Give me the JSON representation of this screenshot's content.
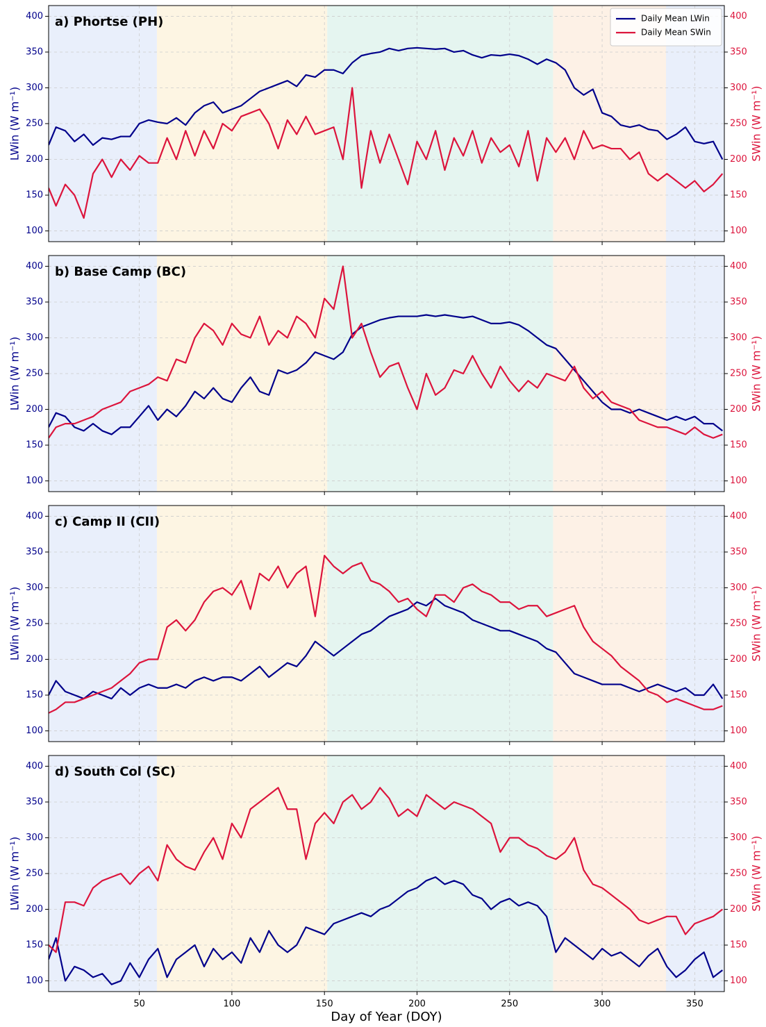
{
  "chart_data": [
    {
      "type": "line",
      "title": "a) Phortse (PH)",
      "ylabel": "LWin (W m⁻¹)",
      "y2label": "SWin (W m⁻¹)",
      "legend": "upper right",
      "xlim": [
        1,
        366
      ],
      "xticks": [
        50,
        100,
        150,
        200,
        250,
        300,
        350
      ],
      "show_xticklabels": false,
      "ylim": [
        85,
        415
      ],
      "yticks": [
        100,
        150,
        200,
        250,
        300,
        350,
        400
      ],
      "y2lim": [
        85,
        415
      ],
      "y2ticks": [
        100,
        150,
        200,
        250,
        300,
        350,
        400
      ],
      "grid": true,
      "shaded_periods": [
        {
          "start": 1,
          "end": 59.5,
          "color": "#e9effb"
        },
        {
          "start": 59.5,
          "end": 151.5,
          "color": "#fdf5e3"
        },
        {
          "start": 151.5,
          "end": 273.5,
          "color": "#e5f5f0"
        },
        {
          "start": 273.5,
          "end": 334.5,
          "color": "#fdf1e6"
        },
        {
          "start": 334.5,
          "end": 366,
          "color": "#e9effb"
        }
      ],
      "x": [
        1,
        5,
        10,
        15,
        20,
        25,
        30,
        35,
        40,
        45,
        50,
        55,
        60,
        65,
        70,
        75,
        80,
        85,
        90,
        95,
        100,
        105,
        110,
        115,
        120,
        125,
        130,
        135,
        140,
        145,
        150,
        155,
        160,
        165,
        170,
        175,
        180,
        185,
        190,
        195,
        200,
        205,
        210,
        215,
        220,
        225,
        230,
        235,
        240,
        245,
        250,
        255,
        260,
        265,
        270,
        275,
        280,
        285,
        290,
        295,
        300,
        305,
        310,
        315,
        320,
        325,
        330,
        335,
        340,
        345,
        350,
        355,
        360,
        365
      ],
      "series": [
        {
          "name": "Daily Mean LWin",
          "color": "#00008b",
          "values": [
            220,
            245,
            240,
            225,
            235,
            220,
            230,
            228,
            232,
            232,
            250,
            255,
            252,
            250,
            258,
            248,
            265,
            275,
            280,
            265,
            270,
            275,
            285,
            295,
            300,
            305,
            310,
            302,
            318,
            315,
            325,
            325,
            320,
            335,
            345,
            348,
            350,
            355,
            352,
            355,
            356,
            355,
            354,
            355,
            350,
            352,
            346,
            342,
            346,
            345,
            347,
            345,
            340,
            333,
            340,
            335,
            325,
            300,
            290,
            298,
            265,
            260,
            248,
            245,
            248,
            242,
            240,
            228,
            235,
            245,
            225,
            222,
            225,
            200
          ]
        },
        {
          "name": "Daily Mean SWin",
          "color": "#dc143c",
          "axis": "y2",
          "values": [
            160,
            135,
            165,
            150,
            118,
            180,
            200,
            175,
            200,
            185,
            205,
            195,
            195,
            230,
            200,
            240,
            205,
            240,
            215,
            250,
            240,
            260,
            265,
            270,
            250,
            215,
            255,
            235,
            260,
            235,
            240,
            245,
            200,
            300,
            160,
            240,
            195,
            235,
            200,
            165,
            225,
            200,
            240,
            185,
            230,
            205,
            240,
            195,
            230,
            210,
            220,
            190,
            240,
            170,
            230,
            210,
            230,
            200,
            240,
            215,
            220,
            215,
            215,
            200,
            210,
            180,
            170,
            180,
            170,
            160,
            170,
            155,
            165,
            180
          ]
        }
      ]
    },
    {
      "type": "line",
      "title": "b) Base Camp (BC)",
      "ylabel": "LWin (W m⁻¹)",
      "y2label": "SWin (W m⁻¹)",
      "xlim": [
        1,
        366
      ],
      "xticks": [
        50,
        100,
        150,
        200,
        250,
        300,
        350
      ],
      "show_xticklabels": false,
      "ylim": [
        85,
        415
      ],
      "yticks": [
        100,
        150,
        200,
        250,
        300,
        350,
        400
      ],
      "y2lim": [
        85,
        415
      ],
      "y2ticks": [
        100,
        150,
        200,
        250,
        300,
        350,
        400
      ],
      "grid": true,
      "shaded_periods": [
        {
          "start": 1,
          "end": 59.5,
          "color": "#e9effb"
        },
        {
          "start": 59.5,
          "end": 151.5,
          "color": "#fdf5e3"
        },
        {
          "start": 151.5,
          "end": 273.5,
          "color": "#e5f5f0"
        },
        {
          "start": 273.5,
          "end": 334.5,
          "color": "#fdf1e6"
        },
        {
          "start": 334.5,
          "end": 366,
          "color": "#e9effb"
        }
      ],
      "x": [
        1,
        5,
        10,
        15,
        20,
        25,
        30,
        35,
        40,
        45,
        50,
        55,
        60,
        65,
        70,
        75,
        80,
        85,
        90,
        95,
        100,
        105,
        110,
        115,
        120,
        125,
        130,
        135,
        140,
        145,
        150,
        155,
        160,
        165,
        170,
        175,
        180,
        185,
        190,
        195,
        200,
        205,
        210,
        215,
        220,
        225,
        230,
        235,
        240,
        245,
        250,
        255,
        260,
        265,
        270,
        275,
        280,
        285,
        290,
        295,
        300,
        305,
        310,
        315,
        320,
        325,
        330,
        335,
        340,
        345,
        350,
        355,
        360,
        365
      ],
      "series": [
        {
          "color": "#00008b",
          "values": [
            175,
            195,
            190,
            175,
            170,
            180,
            170,
            165,
            175,
            175,
            190,
            205,
            185,
            200,
            190,
            205,
            225,
            215,
            230,
            215,
            210,
            230,
            245,
            225,
            220,
            255,
            250,
            255,
            265,
            280,
            275,
            270,
            280,
            305,
            315,
            320,
            325,
            328,
            330,
            330,
            330,
            332,
            330,
            332,
            330,
            328,
            330,
            325,
            320,
            320,
            322,
            318,
            310,
            300,
            290,
            285,
            270,
            255,
            240,
            225,
            210,
            200,
            200,
            195,
            200,
            195,
            190,
            185,
            190,
            185,
            190,
            180,
            180,
            170
          ]
        },
        {
          "color": "#dc143c",
          "axis": "y2",
          "values": [
            160,
            175,
            180,
            180,
            185,
            190,
            200,
            205,
            210,
            225,
            230,
            235,
            245,
            240,
            270,
            265,
            300,
            320,
            310,
            290,
            320,
            305,
            300,
            330,
            290,
            310,
            300,
            330,
            320,
            300,
            355,
            340,
            400,
            300,
            320,
            280,
            245,
            260,
            265,
            230,
            200,
            250,
            220,
            230,
            255,
            250,
            275,
            250,
            230,
            260,
            240,
            225,
            240,
            230,
            250,
            245,
            240,
            260,
            230,
            215,
            225,
            210,
            205,
            200,
            185,
            180,
            175,
            175,
            170,
            165,
            175,
            165,
            160,
            165
          ]
        }
      ]
    },
    {
      "type": "line",
      "title": "c) Camp II (CII)",
      "ylabel": "LWin (W m⁻¹)",
      "y2label": "SWin (W m⁻¹)",
      "xlim": [
        1,
        366
      ],
      "xticks": [
        50,
        100,
        150,
        200,
        250,
        300,
        350
      ],
      "show_xticklabels": false,
      "ylim": [
        85,
        415
      ],
      "yticks": [
        100,
        150,
        200,
        250,
        300,
        350,
        400
      ],
      "y2lim": [
        85,
        415
      ],
      "y2ticks": [
        100,
        150,
        200,
        250,
        300,
        350,
        400
      ],
      "grid": true,
      "shaded_periods": [
        {
          "start": 1,
          "end": 59.5,
          "color": "#e9effb"
        },
        {
          "start": 59.5,
          "end": 151.5,
          "color": "#fdf5e3"
        },
        {
          "start": 151.5,
          "end": 273.5,
          "color": "#e5f5f0"
        },
        {
          "start": 273.5,
          "end": 334.5,
          "color": "#fdf1e6"
        },
        {
          "start": 334.5,
          "end": 366,
          "color": "#e9effb"
        }
      ],
      "x": [
        1,
        5,
        10,
        15,
        20,
        25,
        30,
        35,
        40,
        45,
        50,
        55,
        60,
        65,
        70,
        75,
        80,
        85,
        90,
        95,
        100,
        105,
        110,
        115,
        120,
        125,
        130,
        135,
        140,
        145,
        150,
        155,
        160,
        165,
        170,
        175,
        180,
        185,
        190,
        195,
        200,
        205,
        210,
        215,
        220,
        225,
        230,
        235,
        240,
        245,
        250,
        255,
        260,
        265,
        270,
        275,
        280,
        285,
        290,
        295,
        300,
        305,
        310,
        315,
        320,
        325,
        330,
        335,
        340,
        345,
        350,
        355,
        360,
        365
      ],
      "series": [
        {
          "color": "#00008b",
          "values": [
            150,
            170,
            155,
            150,
            145,
            155,
            150,
            145,
            160,
            150,
            160,
            165,
            160,
            160,
            165,
            160,
            170,
            175,
            170,
            175,
            175,
            170,
            180,
            190,
            175,
            185,
            195,
            190,
            205,
            225,
            215,
            205,
            215,
            225,
            235,
            240,
            250,
            260,
            265,
            270,
            280,
            275,
            285,
            275,
            270,
            265,
            255,
            250,
            245,
            240,
            240,
            235,
            230,
            225,
            215,
            210,
            195,
            180,
            175,
            170,
            165,
            165,
            165,
            160,
            155,
            160,
            165,
            160,
            155,
            160,
            150,
            150,
            165,
            145
          ]
        },
        {
          "color": "#dc143c",
          "axis": "y2",
          "values": [
            125,
            130,
            140,
            140,
            145,
            150,
            155,
            160,
            170,
            180,
            195,
            200,
            200,
            245,
            255,
            240,
            255,
            280,
            295,
            300,
            290,
            310,
            270,
            320,
            310,
            330,
            300,
            320,
            330,
            260,
            345,
            330,
            320,
            330,
            335,
            310,
            305,
            295,
            280,
            285,
            270,
            260,
            290,
            290,
            280,
            300,
            305,
            295,
            290,
            280,
            280,
            270,
            275,
            275,
            260,
            265,
            270,
            275,
            245,
            225,
            215,
            205,
            190,
            180,
            170,
            155,
            150,
            140,
            145,
            140,
            135,
            130,
            130,
            135
          ]
        }
      ]
    },
    {
      "type": "line",
      "title": "d) South Col (SC)",
      "ylabel": "LWin (W m⁻¹)",
      "y2label": "SWin (W m⁻¹)",
      "xlabel": "Day of Year (DOY)",
      "xlim": [
        1,
        366
      ],
      "xticks": [
        50,
        100,
        150,
        200,
        250,
        300,
        350
      ],
      "show_xticklabels": true,
      "ylim": [
        85,
        415
      ],
      "yticks": [
        100,
        150,
        200,
        250,
        300,
        350,
        400
      ],
      "y2lim": [
        85,
        415
      ],
      "y2ticks": [
        100,
        150,
        200,
        250,
        300,
        350,
        400
      ],
      "grid": true,
      "shaded_periods": [
        {
          "start": 1,
          "end": 59.5,
          "color": "#e9effb"
        },
        {
          "start": 59.5,
          "end": 151.5,
          "color": "#fdf5e3"
        },
        {
          "start": 151.5,
          "end": 273.5,
          "color": "#e5f5f0"
        },
        {
          "start": 273.5,
          "end": 334.5,
          "color": "#fdf1e6"
        },
        {
          "start": 334.5,
          "end": 366,
          "color": "#e9effb"
        }
      ],
      "x": [
        1,
        5,
        10,
        15,
        20,
        25,
        30,
        35,
        40,
        45,
        50,
        55,
        60,
        65,
        70,
        75,
        80,
        85,
        90,
        95,
        100,
        105,
        110,
        115,
        120,
        125,
        130,
        135,
        140,
        145,
        150,
        155,
        160,
        165,
        170,
        175,
        180,
        185,
        190,
        195,
        200,
        205,
        210,
        215,
        220,
        225,
        230,
        235,
        240,
        245,
        250,
        255,
        260,
        265,
        270,
        275,
        280,
        285,
        290,
        295,
        300,
        305,
        310,
        315,
        320,
        325,
        330,
        335,
        340,
        345,
        350,
        355,
        360,
        365
      ],
      "series": [
        {
          "color": "#00008b",
          "values": [
            130,
            160,
            100,
            120,
            115,
            105,
            110,
            95,
            100,
            125,
            105,
            130,
            145,
            105,
            130,
            140,
            150,
            120,
            145,
            130,
            140,
            125,
            160,
            140,
            170,
            150,
            140,
            150,
            175,
            170,
            165,
            180,
            185,
            190,
            195,
            190,
            200,
            205,
            215,
            225,
            230,
            240,
            245,
            235,
            240,
            235,
            220,
            215,
            200,
            210,
            215,
            205,
            210,
            205,
            190,
            140,
            160,
            150,
            140,
            130,
            145,
            135,
            140,
            130,
            120,
            135,
            145,
            120,
            105,
            115,
            130,
            140,
            105,
            115
          ]
        },
        {
          "color": "#dc143c",
          "axis": "y2",
          "values": [
            150,
            140,
            210,
            210,
            205,
            230,
            240,
            245,
            250,
            235,
            250,
            260,
            240,
            290,
            270,
            260,
            255,
            280,
            300,
            270,
            320,
            300,
            340,
            350,
            360,
            370,
            340,
            340,
            270,
            320,
            335,
            320,
            350,
            360,
            340,
            350,
            370,
            355,
            330,
            340,
            330,
            360,
            350,
            340,
            350,
            345,
            340,
            330,
            320,
            280,
            300,
            300,
            290,
            285,
            275,
            270,
            280,
            300,
            255,
            235,
            230,
            220,
            210,
            200,
            185,
            180,
            185,
            190,
            190,
            165,
            180,
            185,
            190,
            200
          ]
        }
      ]
    }
  ]
}
